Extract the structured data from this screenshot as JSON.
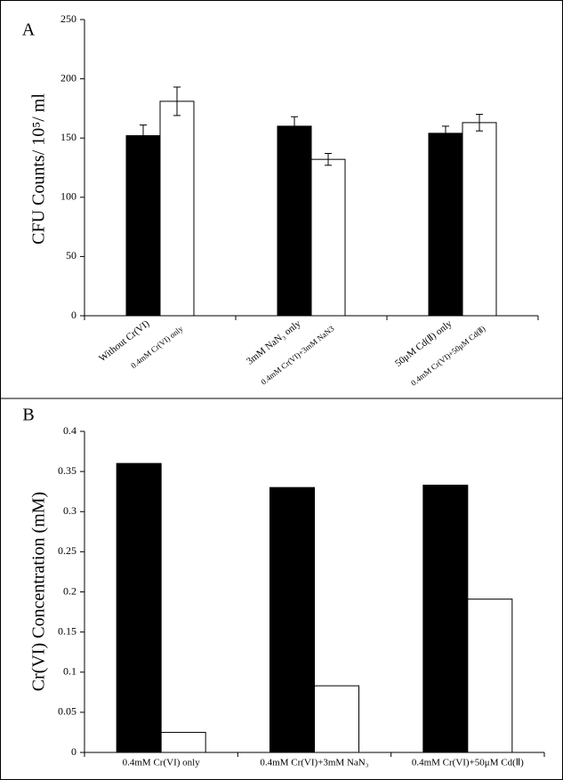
{
  "chart_data": [
    {
      "type": "bar",
      "label": "A",
      "ylabel": "CFU Counts/ 10⁵/ ml",
      "categories": [
        "Without Cr(VI)",
        "0.4mM Cr(VI) only",
        "3mM NaN₃ only",
        "0.4mM Cr(VI)+3mM NaN3",
        "50μM Cd(Ⅱ) only",
        "0.4mM Cr(VI)+50μM Cd(Ⅱ)"
      ],
      "values": [
        152,
        181,
        160,
        132,
        154,
        163
      ],
      "errors": [
        9,
        12,
        8,
        5,
        6,
        7
      ],
      "colors": [
        "#000000",
        "#ffffff",
        "#000000",
        "#ffffff",
        "#000000",
        "#ffffff"
      ],
      "ylim": [
        0,
        250
      ],
      "yticks": [
        0,
        50,
        100,
        150,
        200,
        250
      ]
    },
    {
      "type": "bar",
      "label": "B",
      "ylabel": "Cr(VI) Concentration (mM)",
      "categories": [
        "0.4mM Cr(VI) only",
        "0.4mM Cr(VI)+3mM NaN₃",
        "0.4mM Cr(VI)+50μM Cd(Ⅱ)"
      ],
      "series": [
        {
          "color": "#000000",
          "values": [
            0.36,
            0.33,
            0.333
          ]
        },
        {
          "color": "#ffffff",
          "values": [
            0.025,
            0.083,
            0.191
          ]
        }
      ],
      "ylim": [
        0,
        0.4
      ],
      "yticks": [
        0,
        0.05,
        0.1,
        0.15,
        0.2,
        0.25,
        0.3,
        0.35,
        0.4
      ]
    }
  ]
}
